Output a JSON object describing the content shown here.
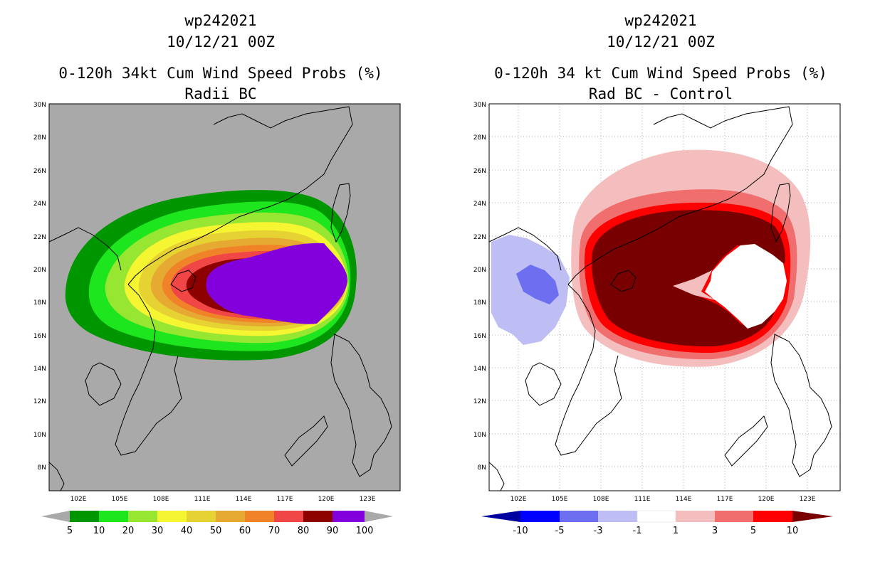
{
  "left": {
    "title_line1": "wp242021",
    "title_line2": "10/12/21 00Z",
    "title_line3": "0-120h 34kt Cum Wind Speed Probs (%)",
    "title_line4": "Radii BC",
    "lat_labels": [
      "30N",
      "28N",
      "26N",
      "24N",
      "22N",
      "20N",
      "18N",
      "16N",
      "14N",
      "12N",
      "10N",
      "8N"
    ],
    "lon_labels": [
      "102E",
      "105E",
      "108E",
      "111E",
      "114E",
      "117E",
      "120E",
      "123E"
    ],
    "colorbar_labels": [
      "5",
      "10",
      "20",
      "30",
      "40",
      "50",
      "60",
      "70",
      "80",
      "90",
      "100"
    ],
    "colorbar_colors": [
      "#009600",
      "#1ee61e",
      "#96e632",
      "#f5f532",
      "#e6d232",
      "#e6aa32",
      "#f08228",
      "#f04646",
      "#8c0000",
      "#8200dc"
    ],
    "background_color": "#a9a9a9"
  },
  "right": {
    "title_line1": "wp242021",
    "title_line2": "10/12/21 00Z",
    "title_line3": "0-120h 34 kt Cum Wind Speed Probs (%)",
    "title_line4": "Rad BC - Control",
    "lat_labels": [
      "30N",
      "28N",
      "26N",
      "24N",
      "22N",
      "20N",
      "18N",
      "16N",
      "14N",
      "12N",
      "10N",
      "8N"
    ],
    "lon_labels": [
      "102E",
      "105E",
      "108E",
      "111E",
      "114E",
      "117E",
      "120E",
      "123E"
    ],
    "colorbar_labels": [
      "-10",
      "-5",
      "-3",
      "-1",
      "1",
      "3",
      "5",
      "10"
    ],
    "colorbar_colors": [
      "#0000a0",
      "#0000ff",
      "#6e6ef0",
      "#bebef5",
      "#ffffff",
      "#f5bebe",
      "#f06e6e",
      "#ff0000",
      "#780000"
    ],
    "background_color": "#ffffff"
  }
}
